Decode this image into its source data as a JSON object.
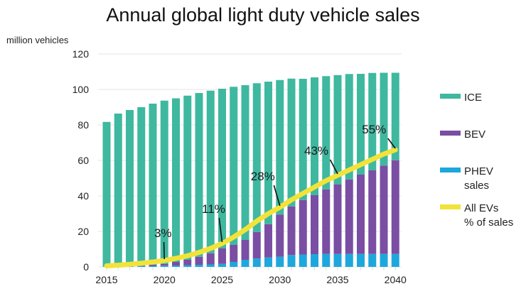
{
  "chart_data": {
    "type": "bar",
    "stacked": true,
    "title": "Annual global light duty vehicle sales",
    "ylabel": "million vehicles",
    "xlabel": "",
    "ylim": [
      0,
      120
    ],
    "yticks": [
      0,
      20,
      40,
      60,
      80,
      100,
      120
    ],
    "xticks": [
      2015,
      2020,
      2025,
      2030,
      2035,
      2040
    ],
    "grid": true,
    "legend_placement": "right",
    "categories": [
      2015,
      2016,
      2017,
      2018,
      2019,
      2020,
      2021,
      2022,
      2023,
      2024,
      2025,
      2026,
      2027,
      2028,
      2029,
      2030,
      2031,
      2032,
      2033,
      2034,
      2035,
      2036,
      2037,
      2038,
      2039,
      2040
    ],
    "series": [
      {
        "name": "PHEV sales",
        "color": "#1ea7dc",
        "values": [
          0.2,
          0.3,
          0.4,
          0.5,
          0.6,
          0.7,
          0.8,
          1.0,
          1.2,
          1.4,
          1.7,
          2.8,
          4.0,
          4.7,
          5.3,
          5.7,
          6.7,
          7.0,
          7.2,
          7.3,
          7.3,
          7.3,
          7.3,
          7.3,
          7.3,
          7.3
        ]
      },
      {
        "name": "BEV",
        "color": "#7a4ea3",
        "values": [
          0.1,
          0.2,
          0.3,
          0.5,
          0.7,
          1.0,
          2.0,
          3.0,
          4.5,
          6.3,
          8.7,
          9.6,
          11.2,
          15.0,
          18.8,
          23.8,
          27.4,
          30.7,
          33.2,
          36.4,
          39.1,
          42.0,
          44.7,
          47.1,
          49.8,
          52.8
        ]
      },
      {
        "name": "ICE",
        "color": "#3fb8a0",
        "values": [
          81.4,
          85.9,
          87.7,
          89.0,
          90.7,
          92.0,
          92.2,
          92.5,
          92.3,
          91.6,
          90.0,
          89.1,
          87.2,
          83.8,
          80.3,
          75.8,
          72.0,
          68.3,
          66.4,
          63.8,
          61.7,
          59.4,
          56.8,
          54.9,
          52.3,
          49.3
        ]
      }
    ],
    "line": {
      "name": "All EVs % of sales",
      "color": "#f2e33a",
      "values_pct": [
        0.5,
        0.8,
        1.2,
        1.7,
        2.3,
        3,
        4,
        5.2,
        6.8,
        8.7,
        11,
        14,
        17.5,
        21.5,
        25,
        28,
        31.5,
        34.5,
        37.5,
        40.5,
        43,
        45.5,
        48,
        50.5,
        53,
        55
      ]
    },
    "annotations": [
      {
        "x": 2020,
        "text": "3%"
      },
      {
        "x": 2025,
        "text": "11%"
      },
      {
        "x": 2030,
        "text": "28%"
      },
      {
        "x": 2035,
        "text": "43%"
      },
      {
        "x": 2040,
        "text": "55%"
      }
    ],
    "legend": [
      {
        "label": [
          "ICE"
        ],
        "color": "#3fb8a0"
      },
      {
        "label": [
          "BEV"
        ],
        "color": "#7a4ea3"
      },
      {
        "label": [
          "PHEV",
          "sales"
        ],
        "color": "#1ea7dc"
      },
      {
        "label": [
          "All EVs",
          "% of sales"
        ],
        "color": "#f2e33a"
      }
    ]
  }
}
